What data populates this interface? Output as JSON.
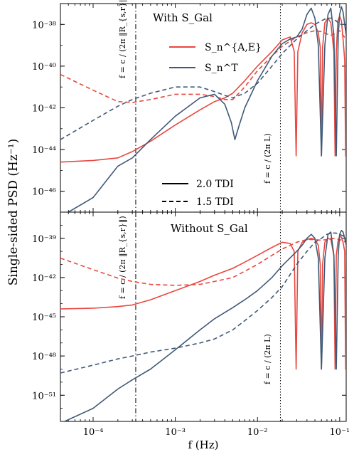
{
  "figure": {
    "ylabel": "Single-sided PSD (Hz⁻¹)",
    "xlabel": "f (Hz)"
  },
  "legend": {
    "ae_label": "S_n^{A,E}",
    "t_label": "S_n^T",
    "solid_label": "2.0 TDI",
    "dashed_label": "1.5 TDI"
  },
  "colors": {
    "ae": "#e8473f",
    "t": "#3f5a78"
  },
  "annotations": {
    "vline1_label": "f = c / (2π ‖R_{s,r}‖)",
    "vline2_label": "f = c / (2π L)"
  },
  "chart_data": [
    {
      "type": "line",
      "panel": "top",
      "title": "With S_Gal",
      "x_scale": "log",
      "y_scale": "log",
      "xlim": [
        4e-05,
        0.12
      ],
      "ylim": [
        1e-47,
        1e-37
      ],
      "y_ticks": [
        1e-46,
        1e-44,
        1e-42,
        1e-40,
        1e-38
      ],
      "y_tick_labels": [
        "10⁻⁴⁶",
        "10⁻⁴⁴",
        "10⁻⁴²",
        "10⁻⁴⁰",
        "10⁻³⁸"
      ],
      "vlines": [
        {
          "x": 0.00033,
          "style": "dashdot"
        },
        {
          "x": 0.019,
          "style": "dotted"
        }
      ],
      "series": [
        {
          "name": "S_n^{A,E}, 2.0 TDI",
          "color": "ae",
          "style": "solid",
          "x": [
            4e-05,
            0.0001,
            0.0002,
            0.0003,
            0.0005,
            0.001,
            0.002,
            0.003,
            0.004,
            0.005,
            0.007,
            0.01,
            0.015,
            0.02,
            0.025,
            0.028,
            0.0295,
            0.031,
            0.035,
            0.04,
            0.045,
            0.05,
            0.055,
            0.058,
            0.06,
            0.062,
            0.066,
            0.072,
            0.078,
            0.085,
            0.088,
            0.091,
            0.095,
            0.1,
            0.105,
            0.11,
            0.115,
            0.118,
            0.12
          ],
          "y": [
            2.5e-45,
            3e-45,
            4e-45,
            8e-45,
            2.5e-44,
            1.5e-43,
            8e-43,
            2e-42,
            3e-42,
            5e-42,
            2e-41,
            1e-40,
            5e-40,
            1.8e-39,
            2.5e-39,
            5e-40,
            5e-45,
            5e-40,
            4e-39,
            1e-38,
            1.2e-38,
            1e-38,
            4e-39,
            8e-40,
            5e-45,
            8e-40,
            1.2e-38,
            2e-38,
            1.2e-38,
            5e-40,
            5e-45,
            5e-40,
            1.5e-38,
            2.5e-38,
            1.5e-38,
            2e-39,
            2e-40,
            5e-45,
            3e-40
          ]
        },
        {
          "name": "S_n^{A,E}, 1.5 TDI",
          "color": "ae",
          "style": "dashed",
          "x": [
            4e-05,
            0.0001,
            0.0002,
            0.0003,
            0.0005,
            0.001,
            0.002,
            0.003,
            0.004,
            0.005,
            0.007,
            0.01,
            0.015,
            0.02,
            0.03,
            0.04,
            0.05,
            0.06,
            0.07,
            0.08,
            0.09,
            0.1,
            0.11,
            0.12
          ],
          "y": [
            4e-41,
            7e-42,
            2e-42,
            1.8e-42,
            2.5e-42,
            4.5e-42,
            4.5e-42,
            3.5e-42,
            2.5e-42,
            2.5e-42,
            1e-41,
            6e-41,
            3e-40,
            9e-40,
            2.5e-39,
            4e-39,
            5e-39,
            4.5e-39,
            3.5e-39,
            3e-39,
            4e-39,
            5e-39,
            3e-39,
            2e-39
          ]
        },
        {
          "name": "S_n^T, 2.0 TDI",
          "color": "t",
          "style": "solid",
          "x": [
            5e-05,
            0.0001,
            0.0002,
            0.0003,
            0.0005,
            0.001,
            0.002,
            0.003,
            0.004,
            0.0048,
            0.0053,
            0.006,
            0.007,
            0.01,
            0.015,
            0.02,
            0.025,
            0.03,
            0.035,
            0.04,
            0.045,
            0.05,
            0.055,
            0.06,
            0.066,
            0.072,
            0.078,
            0.085,
            0.091,
            0.096,
            0.1,
            0.105,
            0.11,
            0.115,
            0.12
          ],
          "y": [
            1e-47,
            5e-47,
            1.6e-45,
            4e-45,
            3e-44,
            4e-43,
            3e-42,
            4.5e-42,
            1.5e-42,
            2e-43,
            3e-44,
            1.5e-43,
            1e-42,
            2e-41,
            3e-40,
            1.2e-39,
            2e-39,
            2.5e-39,
            6e-39,
            3e-38,
            6e-38,
            2e-38,
            1e-39,
            5e-45,
            1e-39,
            3e-38,
            6e-38,
            3e-39,
            5e-45,
            3e-39,
            3e-38,
            7e-38,
            4e-38,
            1e-38,
            3e-39
          ]
        },
        {
          "name": "S_n^T, 1.5 TDI",
          "color": "t",
          "style": "dashed",
          "x": [
            4e-05,
            0.0001,
            0.0002,
            0.0003,
            0.0005,
            0.001,
            0.002,
            0.003,
            0.004,
            0.005,
            0.007,
            0.01,
            0.015,
            0.02,
            0.03,
            0.04,
            0.05,
            0.06,
            0.07,
            0.08,
            0.09,
            0.1,
            0.11,
            0.12
          ],
          "y": [
            3e-44,
            2.5e-43,
            1.2e-42,
            2.5e-42,
            5e-42,
            1e-41,
            1e-41,
            6e-42,
            4e-42,
            3e-42,
            5e-42,
            1.5e-41,
            1e-40,
            4e-40,
            2e-39,
            5e-39,
            1e-38,
            1.5e-38,
            2e-38,
            2e-38,
            1.5e-38,
            1e-38,
            1e-38,
            1e-38
          ]
        }
      ]
    },
    {
      "type": "line",
      "panel": "bottom",
      "title": "Without S_Gal",
      "x_scale": "log",
      "y_scale": "log",
      "xlim": [
        4e-05,
        0.12
      ],
      "ylim": [
        1e-53,
        1e-37
      ],
      "x_ticks": [
        0.0001,
        0.001,
        0.01,
        0.1
      ],
      "x_tick_labels": [
        "10⁻⁴",
        "10⁻³",
        "10⁻²",
        "10⁻¹"
      ],
      "y_ticks": [
        1e-51,
        1e-48,
        1e-45,
        1e-42,
        1e-39
      ],
      "y_tick_labels": [
        "10⁻⁵¹",
        "10⁻⁴⁸",
        "10⁻⁴⁵",
        "10⁻⁴²",
        "10⁻³⁹"
      ],
      "vlines": [
        {
          "x": 0.00033,
          "style": "dashdot"
        },
        {
          "x": 0.019,
          "style": "dotted"
        }
      ],
      "series": [
        {
          "name": "S_n^{A,E}, 2.0 TDI",
          "color": "ae",
          "style": "solid",
          "x": [
            4e-05,
            0.0001,
            0.0002,
            0.0003,
            0.0005,
            0.001,
            0.002,
            0.003,
            0.005,
            0.007,
            0.01,
            0.015,
            0.02,
            0.025,
            0.028,
            0.0295,
            0.031,
            0.035,
            0.04,
            0.045,
            0.05,
            0.055,
            0.058,
            0.06,
            0.062,
            0.066,
            0.072,
            0.078,
            0.085,
            0.088,
            0.091,
            0.095,
            0.1,
            0.105,
            0.11,
            0.115,
            0.118,
            0.12
          ],
          "y": [
            4e-45,
            4.5e-45,
            6e-45,
            8e-45,
            2e-44,
            1e-43,
            5e-43,
            1.5e-42,
            5e-42,
            1.5e-41,
            5e-41,
            2e-40,
            5e-40,
            4e-40,
            1e-40,
            1e-49,
            1e-40,
            5e-40,
            8e-40,
            1e-39,
            8e-40,
            3e-40,
            1e-41,
            1e-49,
            1e-41,
            5e-40,
            1e-39,
            8e-40,
            5e-41,
            1e-49,
            5e-41,
            5e-40,
            1.5e-39,
            1.2e-39,
            5e-40,
            1e-40,
            1e-49,
            5e-41
          ]
        },
        {
          "name": "S_n^{A,E}, 1.5 TDI",
          "color": "ae",
          "style": "dashed",
          "x": [
            4e-05,
            0.0001,
            0.0002,
            0.0003,
            0.0005,
            0.001,
            0.002,
            0.003,
            0.005,
            0.007,
            0.01,
            0.015,
            0.02,
            0.03,
            0.04,
            0.05,
            0.06,
            0.07,
            0.08,
            0.09,
            0.1,
            0.11,
            0.12
          ],
          "y": [
            3e-41,
            4e-42,
            9e-43,
            5e-43,
            3e-43,
            2.5e-43,
            3e-43,
            5e-43,
            1e-42,
            3e-42,
            1e-41,
            5e-41,
            1.5e-40,
            5e-40,
            8e-40,
            8e-40,
            7e-40,
            8e-40,
            1e-39,
            9e-40,
            8e-40,
            6e-40,
            5e-40
          ]
        },
        {
          "name": "S_n^T, 2.0 TDI",
          "color": "t",
          "style": "solid",
          "x": [
            4.5e-05,
            0.0001,
            0.0002,
            0.0003,
            0.0005,
            0.001,
            0.002,
            0.003,
            0.005,
            0.007,
            0.01,
            0.015,
            0.02,
            0.03,
            0.035,
            0.04,
            0.045,
            0.05,
            0.055,
            0.06,
            0.066,
            0.072,
            0.078,
            0.085,
            0.091,
            0.096,
            0.1,
            0.105,
            0.11,
            0.115,
            0.12
          ],
          "y": [
            1e-53,
            1e-52,
            3e-51,
            1.5e-50,
            1e-49,
            3e-48,
            1e-46,
            7e-46,
            5e-45,
            2e-44,
            1e-43,
            1e-42,
            8e-42,
            1e-40,
            3e-40,
            1e-39,
            2e-39,
            1e-39,
            3e-41,
            1e-49,
            3e-41,
            2e-39,
            3e-39,
            5e-41,
            1e-49,
            5e-41,
            2e-39,
            4e-39,
            3e-39,
            1e-39,
            3e-40
          ]
        },
        {
          "name": "S_n^T, 1.5 TDI",
          "color": "t",
          "style": "dashed",
          "x": [
            4e-05,
            0.0001,
            0.0002,
            0.0003,
            0.0005,
            0.001,
            0.002,
            0.003,
            0.005,
            0.007,
            0.01,
            0.015,
            0.02,
            0.03,
            0.04,
            0.05,
            0.06,
            0.07,
            0.08,
            0.09,
            0.1,
            0.11,
            0.12
          ],
          "y": [
            5e-50,
            2e-49,
            6e-49,
            1e-48,
            2e-48,
            4e-48,
            1e-47,
            2e-47,
            1e-46,
            5e-46,
            3e-45,
            3e-44,
            2e-43,
            1e-41,
            1e-40,
            5e-40,
            1e-39,
            2e-39,
            2.5e-39,
            2.5e-39,
            2e-39,
            1.5e-39,
            1e-39
          ]
        }
      ]
    }
  ]
}
